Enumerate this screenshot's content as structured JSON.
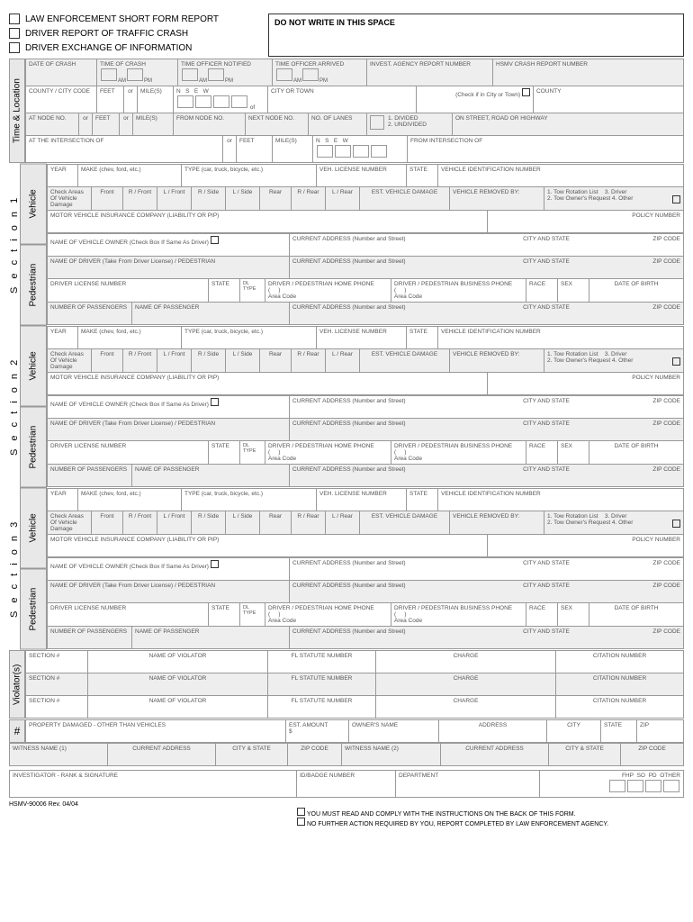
{
  "header": {
    "opt1": "LAW ENFORCEMENT SHORT FORM REPORT",
    "opt2": "DRIVER REPORT OF TRAFFIC CRASH",
    "opt3": "DRIVER EXCHANGE OF INFORMATION",
    "space": "DO NOT WRITE IN THIS SPACE"
  },
  "timeloc": {
    "label": "Time & Location",
    "r1": {
      "date": "DATE OF CRASH",
      "time": "TIME OF CRASH",
      "am": "AM",
      "pm": "PM",
      "notified": "TIME OFFICER NOTIFIED",
      "arrived": "TIME OFFICER ARRIVED",
      "agency": "INVEST. AGENCY REPORT NUMBER",
      "hsmv": "HSMV CRASH REPORT NUMBER"
    },
    "r2": {
      "county": "COUNTY / CITY CODE",
      "feet": "FEET",
      "or": "or",
      "miles": "MILE(S)",
      "n": "N",
      "s": "S",
      "e": "E",
      "w": "W",
      "of": "of",
      "city": "CITY OR TOWN",
      "check": "(Check if in City or Town)",
      "county2": "COUNTY"
    },
    "r3": {
      "node": "AT NODE NO.",
      "or": "or",
      "feet": "FEET",
      "or2": "or",
      "miles": "MILE(S)",
      "from": "FROM NODE NO.",
      "next": "NEXT NODE NO.",
      "lanes": "NO. OF LANES",
      "div": "1. DIVIDED",
      "undiv": "2. UNDIVIDED",
      "street": "ON STREET, ROAD OR HIGHWAY"
    },
    "r4": {
      "inter": "AT THE INTERSECTION OF",
      "or": "or",
      "feet": "FEET",
      "miles": "MILE(S)",
      "n": "N",
      "s": "S",
      "e": "E",
      "w": "W",
      "from": "FROM INTERSECTION OF"
    }
  },
  "section": {
    "s1": "S e c t i o n  1",
    "s2": "S e c t i o n  2",
    "s3": "S e c t i o n  3",
    "veh": "Vehicle",
    "ped": "Pedestrian",
    "r1": {
      "year": "YEAR",
      "make": "MAKE (chev, ford, etc.)",
      "type": "TYPE (car, truck, bicycle, etc.)",
      "lic": "VEH. LICENSE NUMBER",
      "state": "STATE",
      "vin": "VEHICLE IDENTIFICATION NUMBER"
    },
    "r2": {
      "check": "Check Areas Of Vehicle Damage",
      "front": "Front",
      "rfront": "R / Front",
      "lfront": "L / Front",
      "rside": "R / Side",
      "lside": "L / Side",
      "rear": "Rear",
      "rrear": "R / Rear",
      "lrear": "L / Rear",
      "est": "EST. VEHICLE DAMAGE",
      "removed": "VEHICLE REMOVED BY:",
      "tow1": "1. Tow Rotation List",
      "tow2": "2. Tow Owner's Request",
      "tow3": "3. Driver",
      "tow4": "4. Other"
    },
    "r3": {
      "ins": "MOTOR VEHICLE INSURANCE COMPANY (LIABILITY OR PIP)",
      "policy": "POLICY NUMBER"
    },
    "r4": {
      "owner": "NAME OF VEHICLE OWNER (Check Box If Same As Driver)",
      "addr": "CURRENT ADDRESS (Number and Street)",
      "city": "CITY AND STATE",
      "zip": "ZIP CODE"
    },
    "r5": {
      "driver": "NAME OF DRIVER (Take From Driver License) / PEDESTRIAN",
      "addr": "CURRENT ADDRESS (Number and Street)",
      "city": "CITY AND STATE",
      "zip": "ZIP CODE"
    },
    "r6": {
      "dl": "DRIVER LICENSE NUMBER",
      "state": "STATE",
      "dltype": "DL TYPE",
      "home": "DRIVER / PEDESTRIAN HOME PHONE",
      "area": "Area Code",
      "bus": "DRIVER / PEDESTRIAN BUSINESS PHONE",
      "race": "RACE",
      "sex": "SEX",
      "dob": "DATE OF BIRTH"
    },
    "r7": {
      "numpass": "NUMBER OF PASSENGERS",
      "pname": "NAME OF PASSENGER",
      "addr": "CURRENT ADDRESS (Number and Street)",
      "city": "CITY AND STATE",
      "zip": "ZIP CODE"
    }
  },
  "violator": {
    "label": "Violator(s)",
    "sec": "SECTION #",
    "name": "NAME OF VIOLATOR",
    "stat": "FL STATUTE NUMBER",
    "charge": "CHARGE",
    "cite": "CITATION NUMBER"
  },
  "prop": {
    "hash": "#",
    "prop": "PROPERTY DAMAGED - OTHER THAN VEHICLES",
    "est": "EST. AMOUNT",
    "s": "$",
    "owner": "OWNER'S NAME",
    "addr": "ADDRESS",
    "city": "CITY",
    "state": "STATE",
    "zip": "ZIP"
  },
  "witness": {
    "w1": "WITNESS NAME (1)",
    "w2": "WITNESS NAME (2)",
    "addr": "CURRENT ADDRESS",
    "city": "CITY & STATE",
    "zip": "ZIP CODE"
  },
  "inv": {
    "rank": "INVESTIGATOR - RANK & SIGNATURE",
    "badge": "ID/BADGE NUMBER",
    "dept": "DEPARTMENT",
    "fhp": "FHP",
    "so": "SO",
    "pd": "PD",
    "other": "OTHER"
  },
  "footer": {
    "rev": "HSMV-90006 Rev. 04/04",
    "n1": "YOU MUST READ AND COMPLY WITH THE INSTRUCTIONS ON THE BACK OF THIS FORM.",
    "n2": "NO FURTHER ACTION REQUIRED BY YOU, REPORT COMPLETED BY LAW ENFORCEMENT AGENCY."
  }
}
